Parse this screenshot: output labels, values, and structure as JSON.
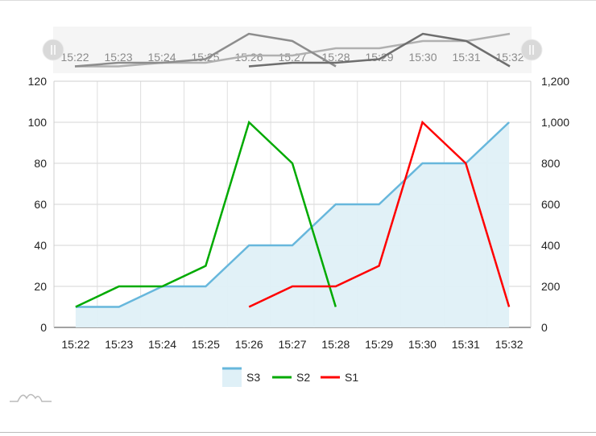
{
  "chart_data": {
    "type": "line",
    "categories": [
      "15:22",
      "15:23",
      "15:24",
      "15:25",
      "15:26",
      "15:27",
      "15:28",
      "15:29",
      "15:30",
      "15:31",
      "15:32"
    ],
    "series": [
      {
        "name": "S3",
        "type": "area",
        "axis": "right",
        "color": "#67b7dc",
        "fill": "#dff0f7",
        "values": [
          100,
          100,
          200,
          200,
          400,
          400,
          600,
          600,
          800,
          800,
          1000
        ]
      },
      {
        "name": "S2",
        "type": "line",
        "axis": "left",
        "color": "#00aa00",
        "values": [
          10,
          20,
          20,
          30,
          100,
          80,
          10,
          null,
          null,
          null,
          null
        ]
      },
      {
        "name": "S1",
        "type": "line",
        "axis": "right",
        "color": "#ff0000",
        "values": [
          null,
          null,
          null,
          null,
          100,
          200,
          200,
          300,
          1000,
          800,
          100
        ]
      }
    ],
    "y_left": {
      "min": 0,
      "max": 120,
      "ticks": [
        "0",
        "20",
        "40",
        "60",
        "80",
        "100",
        "120"
      ]
    },
    "y_right": {
      "min": 0,
      "max": 1200,
      "ticks": [
        "0",
        "200",
        "400",
        "600",
        "800",
        "1,000",
        "1,200"
      ]
    },
    "xlabel": "",
    "ylabel": "",
    "grid": true,
    "legend_position": "bottom"
  },
  "legend": [
    {
      "label": "S3",
      "color": "#67b7dc",
      "fill": "#dff0f7",
      "kind": "area"
    },
    {
      "label": "S2",
      "color": "#00aa00",
      "kind": "line"
    },
    {
      "label": "S1",
      "color": "#ff0000",
      "kind": "line"
    }
  ],
  "scrollbar": {
    "start_grip_icon": "grip-icon",
    "end_grip_icon": "grip-icon"
  },
  "watermark_icon": "chart-logo-icon"
}
